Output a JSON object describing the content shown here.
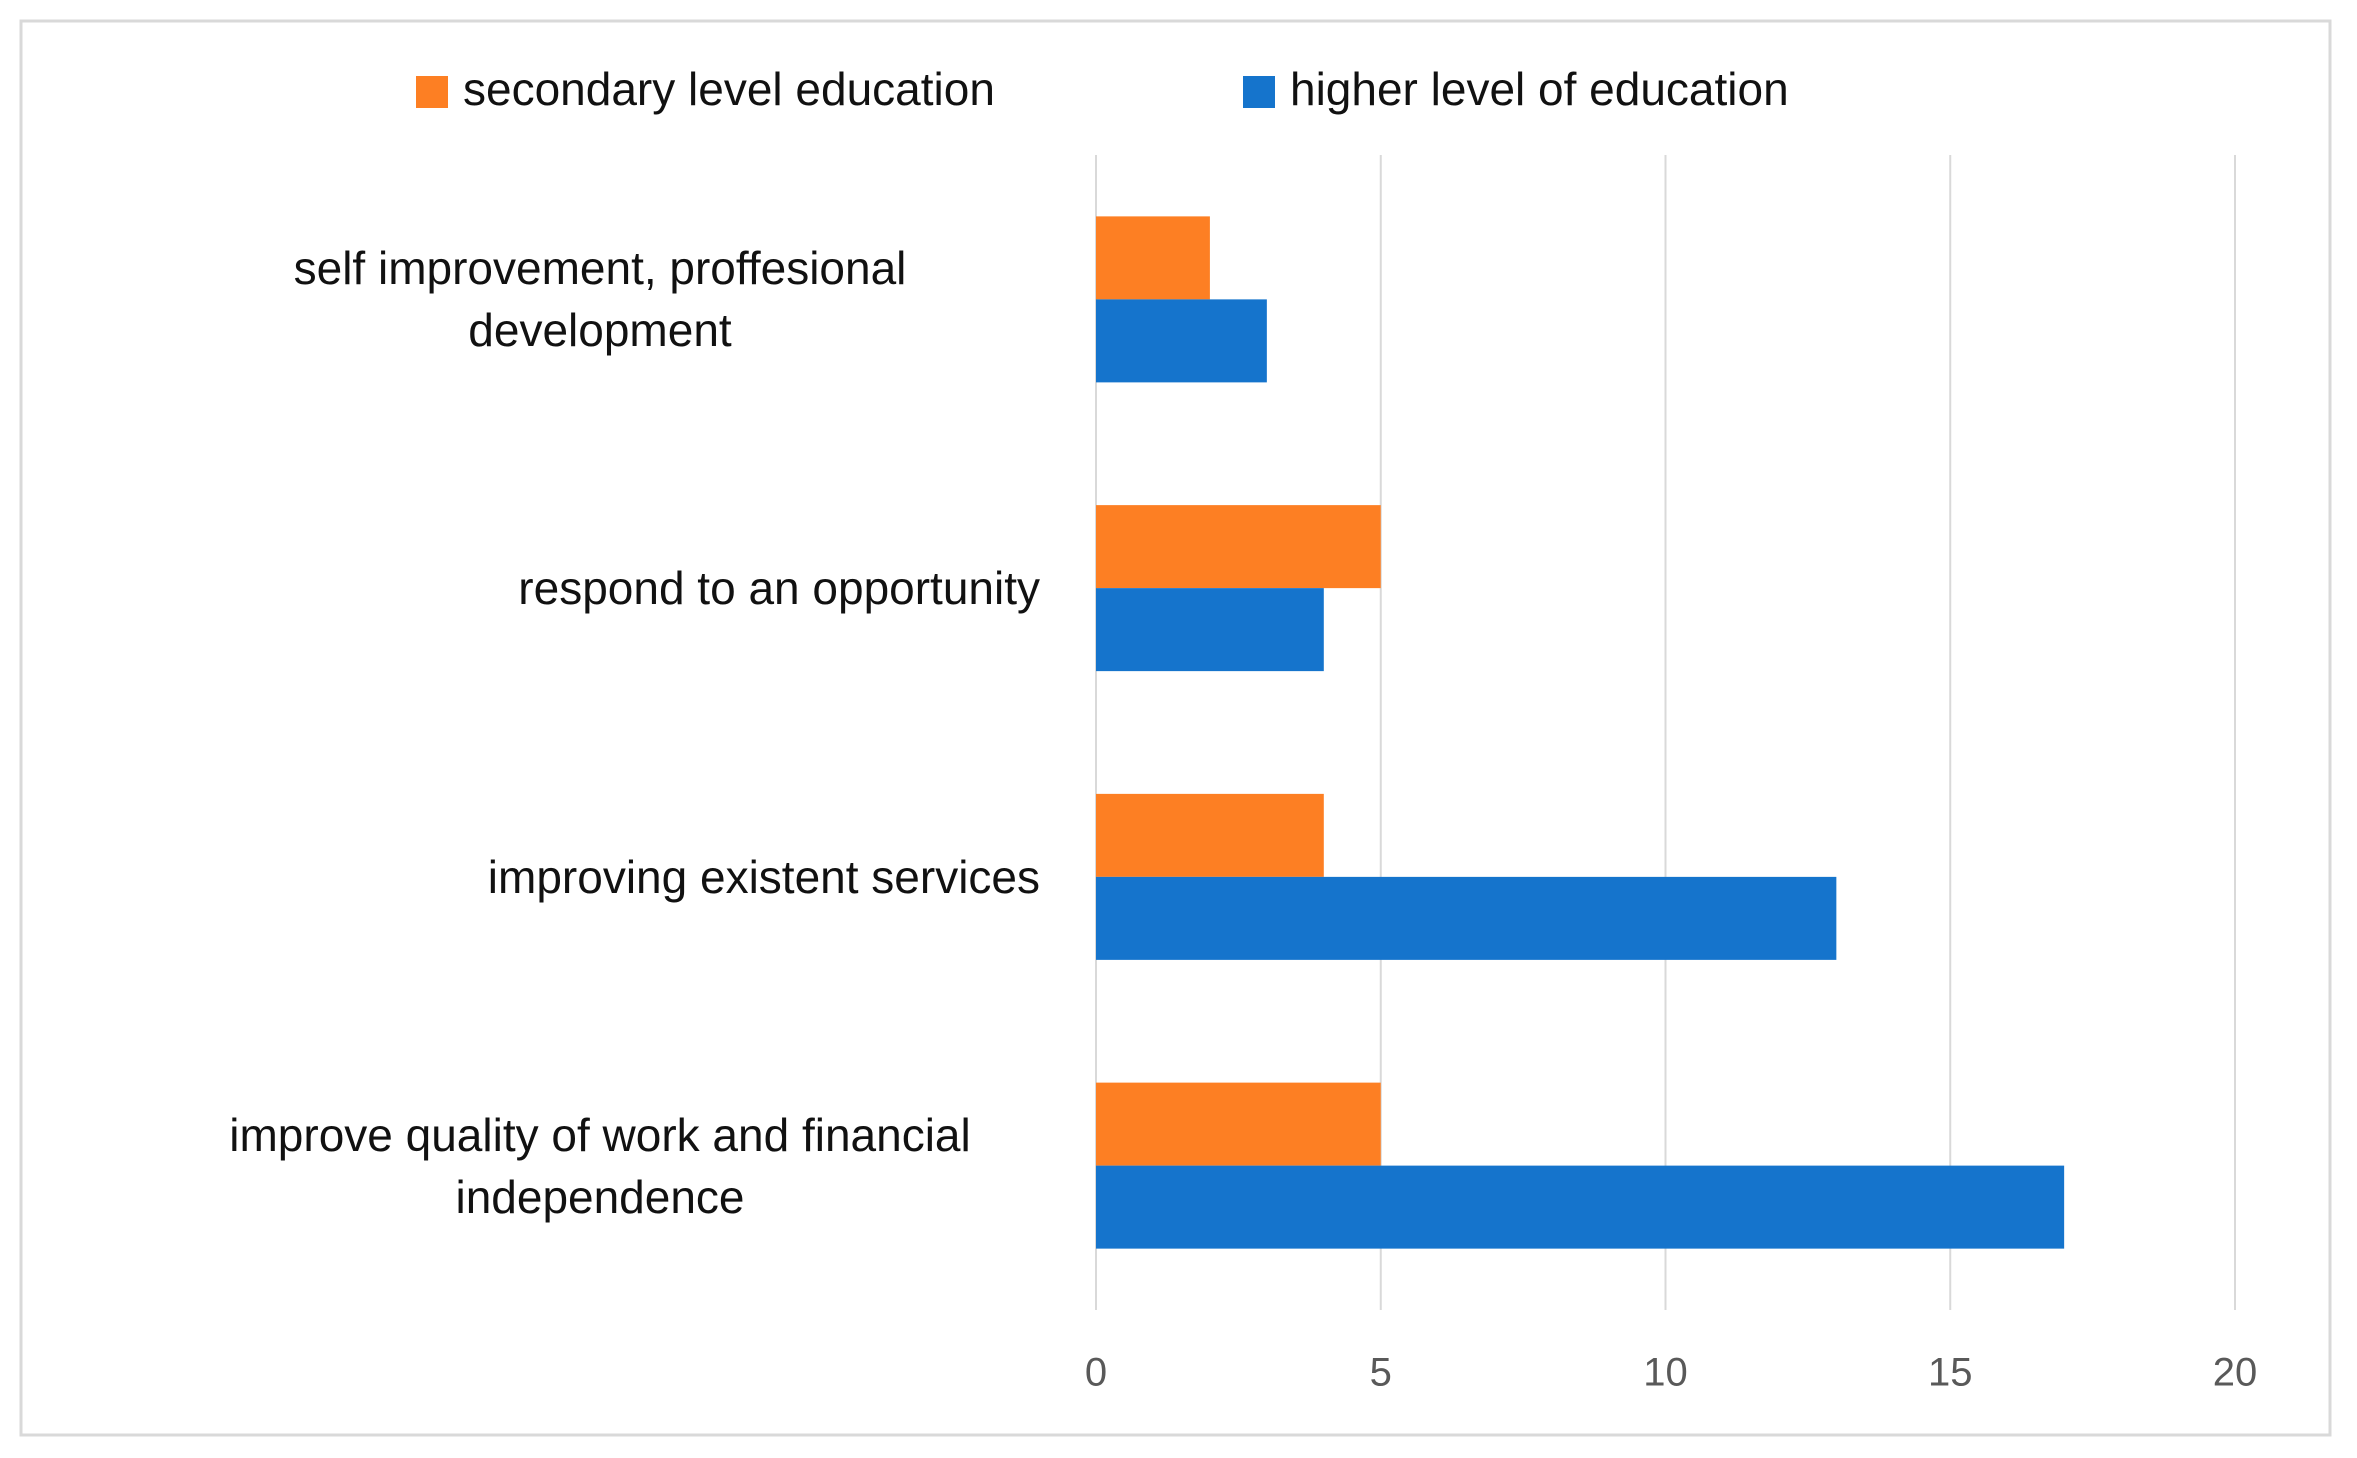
{
  "chart_data": {
    "type": "bar",
    "orientation": "horizontal",
    "categories": [
      "self improvement, proffesional development",
      "respond to an opportunity",
      "improving existent services",
      "improve quality of work and financial independence"
    ],
    "series": [
      {
        "name": "secondary level education",
        "color": "#fd7f23",
        "values": [
          2,
          5,
          4,
          5
        ]
      },
      {
        "name": "higher level of education",
        "color": "#1574cc",
        "values": [
          3,
          4,
          13,
          17
        ]
      }
    ],
    "xlim": [
      0,
      20
    ],
    "xticks": [
      0,
      5,
      10,
      15,
      20
    ],
    "grid": true,
    "legend": "top"
  }
}
